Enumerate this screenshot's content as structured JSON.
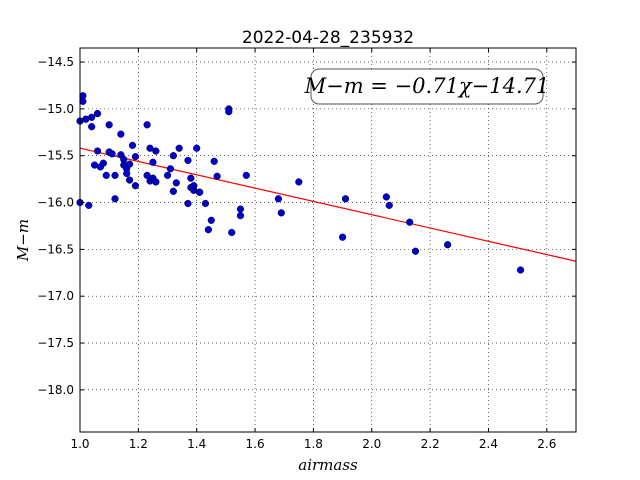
{
  "chart_data": {
    "type": "scatter",
    "title": "2022-04-28_235932",
    "xlabel": "airmass",
    "ylabel": "M−m",
    "xlim": [
      1.0,
      2.7
    ],
    "ylim": [
      -18.45,
      -14.35
    ],
    "y_inverted": true,
    "grid": true,
    "legend": "none",
    "x_ticks": [
      1.0,
      1.2,
      1.4,
      1.6,
      1.8,
      2.0,
      2.2,
      2.4,
      2.6
    ],
    "x_tick_labels": [
      "1.0",
      "1.2",
      "1.4",
      "1.6",
      "1.8",
      "2.0",
      "2.2",
      "2.4",
      "2.6"
    ],
    "y_ticks": [
      -14.5,
      -15.0,
      -15.5,
      -16.0,
      -16.5,
      -17.0,
      -17.5,
      -18.0
    ],
    "y_tick_labels": [
      "−14.5",
      "−15.0",
      "−15.5",
      "−16.0",
      "−16.5",
      "−17.0",
      "−17.5",
      "−18.0"
    ],
    "annotation": "M−m = −0.71χ−14.71",
    "fit": {
      "slope": -0.71,
      "intercept": -14.71,
      "color": "#ff0000"
    },
    "point_color": "#0000cc",
    "series": [
      {
        "points": [
          [
            1.0,
            -15.13
          ],
          [
            1.01,
            -14.86
          ],
          [
            1.01,
            -14.92
          ],
          [
            1.02,
            -15.11
          ],
          [
            1.04,
            -15.09
          ],
          [
            1.04,
            -15.19
          ],
          [
            1.06,
            -15.05
          ],
          [
            1.0,
            -16.0
          ],
          [
            1.03,
            -16.03
          ],
          [
            1.05,
            -15.6
          ],
          [
            1.06,
            -15.45
          ],
          [
            1.07,
            -15.62
          ],
          [
            1.08,
            -15.58
          ],
          [
            1.09,
            -15.71
          ],
          [
            1.1,
            -15.17
          ],
          [
            1.1,
            -15.46
          ],
          [
            1.11,
            -15.48
          ],
          [
            1.12,
            -15.71
          ],
          [
            1.12,
            -15.96
          ],
          [
            1.14,
            -15.49
          ],
          [
            1.14,
            -15.27
          ],
          [
            1.15,
            -15.54
          ],
          [
            1.15,
            -15.6
          ],
          [
            1.16,
            -15.64
          ],
          [
            1.16,
            -15.69
          ],
          [
            1.17,
            -15.59
          ],
          [
            1.17,
            -15.76
          ],
          [
            1.18,
            -15.39
          ],
          [
            1.19,
            -15.51
          ],
          [
            1.19,
            -15.82
          ],
          [
            1.23,
            -15.17
          ],
          [
            1.23,
            -15.71
          ],
          [
            1.24,
            -15.42
          ],
          [
            1.24,
            -15.77
          ],
          [
            1.25,
            -15.74
          ],
          [
            1.25,
            -15.57
          ],
          [
            1.26,
            -15.45
          ],
          [
            1.26,
            -15.78
          ],
          [
            1.3,
            -15.71
          ],
          [
            1.31,
            -15.64
          ],
          [
            1.32,
            -15.88
          ],
          [
            1.32,
            -15.5
          ],
          [
            1.33,
            -15.79
          ],
          [
            1.34,
            -15.42
          ],
          [
            1.37,
            -15.55
          ],
          [
            1.37,
            -16.01
          ],
          [
            1.38,
            -15.84
          ],
          [
            1.38,
            -15.74
          ],
          [
            1.39,
            -15.87
          ],
          [
            1.39,
            -15.82
          ],
          [
            1.4,
            -15.42
          ],
          [
            1.41,
            -15.89
          ],
          [
            1.41,
            -15.89
          ],
          [
            1.43,
            -16.01
          ],
          [
            1.44,
            -16.29
          ],
          [
            1.45,
            -16.19
          ],
          [
            1.46,
            -15.56
          ],
          [
            1.47,
            -15.72
          ],
          [
            1.51,
            -15.0
          ],
          [
            1.51,
            -15.03
          ],
          [
            1.52,
            -16.32
          ],
          [
            1.55,
            -16.07
          ],
          [
            1.55,
            -16.14
          ],
          [
            1.57,
            -15.71
          ],
          [
            1.68,
            -15.96
          ],
          [
            1.69,
            -16.11
          ],
          [
            1.75,
            -15.78
          ],
          [
            1.9,
            -16.37
          ],
          [
            1.91,
            -15.96
          ],
          [
            2.05,
            -15.94
          ],
          [
            2.06,
            -16.03
          ],
          [
            2.13,
            -16.21
          ],
          [
            2.15,
            -16.52
          ],
          [
            2.26,
            -16.45
          ],
          [
            2.51,
            -16.72
          ]
        ]
      }
    ]
  }
}
